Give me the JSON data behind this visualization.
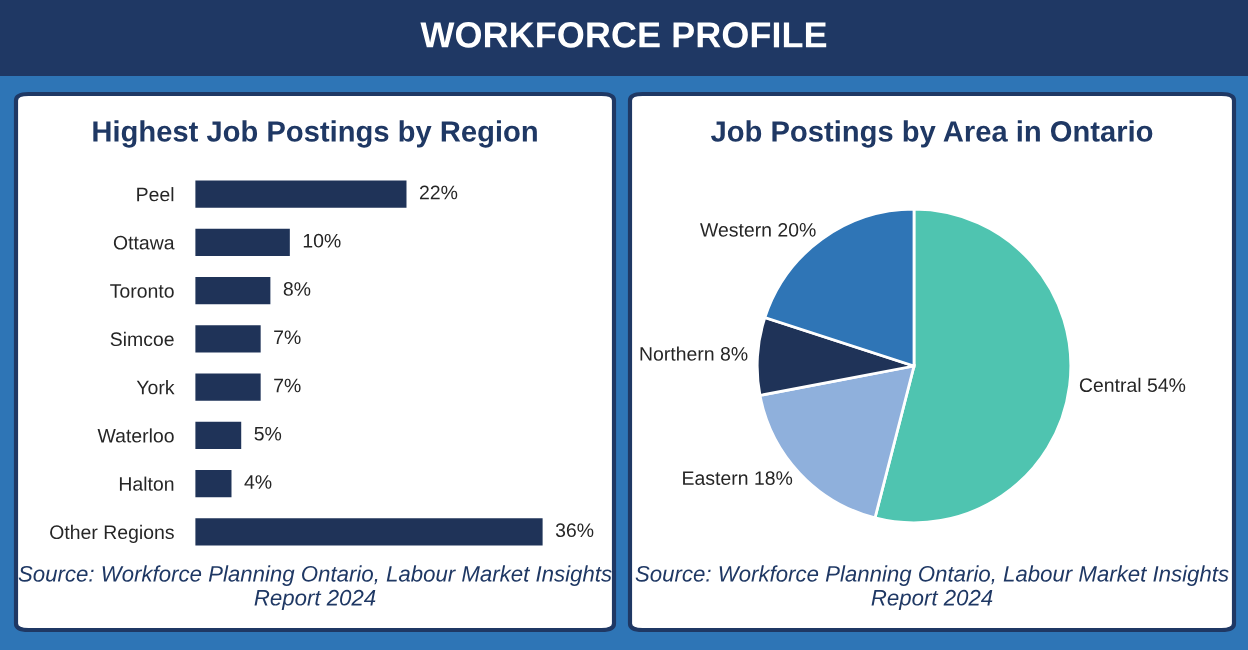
{
  "chart_data": [
    {
      "type": "other",
      "title": "WORKFORCE PROFILE"
    },
    {
      "type": "bar",
      "orientation": "horizontal",
      "title": "Highest Job Postings by Region",
      "categories": [
        "Peel",
        "Ottawa",
        "Toronto",
        "Simcoe",
        "York",
        "Waterloo",
        "Halton",
        "Other Regions"
      ],
      "values": [
        22,
        10,
        8,
        7,
        7,
        5,
        4,
        36
      ],
      "color": "#1f3358",
      "value_labels": [
        "22%",
        "10%",
        "8%",
        "7%",
        "7%",
        "5%",
        "4%",
        "36%"
      ],
      "tick_labels": "y",
      "grid": false,
      "legend": false,
      "annotations": [
        "Source: Workforce Planning Ontario, Labour Market Insights Report 2024"
      ]
    },
    {
      "type": "pie",
      "title": "Job Postings by Area in Ontario",
      "categories": [
        "Central",
        "Eastern",
        "Northern",
        "Western"
      ],
      "values": [
        54,
        18,
        8,
        20
      ],
      "colors": [
        "#4fc4b0",
        "#8fb0dc",
        "#1f3358",
        "#2f75b6"
      ],
      "value_labels": [
        "54%",
        "18%",
        "8%",
        "20%"
      ],
      "legend": false,
      "annotations": [
        "Source: Workforce Planning Ontario, Labour Market Insights Report 2024"
      ]
    }
  ]
}
